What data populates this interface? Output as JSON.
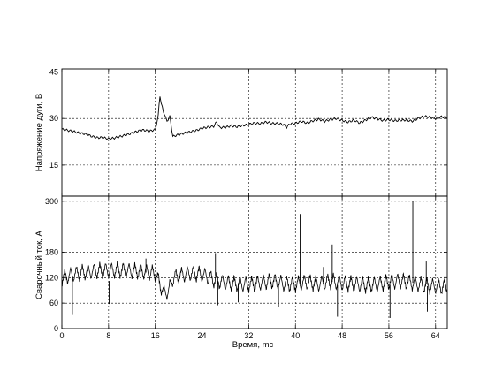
{
  "chart_data": [
    {
      "type": "line",
      "title": "",
      "xlabel": "",
      "ylabel": "Напряжение дуги, В",
      "xlim": [
        0,
        66
      ],
      "ylim": [
        5,
        46
      ],
      "yticks": [
        15,
        30,
        45
      ],
      "xticks": [],
      "grid": true,
      "line_color": "#000000",
      "series": [
        {
          "x": [
            0,
            1,
            2,
            3,
            4,
            5,
            6,
            7,
            8,
            9,
            10,
            11,
            12,
            13,
            14,
            15,
            16,
            16.5,
            16.8,
            17.2,
            17.6,
            18,
            18.5,
            19,
            19.5,
            20,
            21,
            22,
            23,
            24,
            25,
            26,
            26.5,
            27,
            28,
            29,
            30,
            31,
            32,
            33,
            34,
            35,
            36,
            37,
            38,
            38.5,
            39,
            40,
            41,
            42,
            43,
            44,
            45,
            46,
            47,
            48,
            49,
            50,
            51,
            52,
            53,
            54,
            55,
            56,
            57,
            58,
            59,
            60,
            61,
            62,
            63,
            64,
            65,
            66
          ],
          "values": [
            26.5,
            26,
            25.5,
            25,
            24.8,
            24.3,
            24,
            24.2,
            23.8,
            24,
            24.3,
            24.6,
            25,
            25.6,
            26,
            25.8,
            26.5,
            31,
            37,
            33.5,
            31,
            29.5,
            31,
            24.5,
            24.8,
            25,
            25.3,
            25.5,
            25.8,
            26.5,
            27,
            27.5,
            29,
            27.3,
            27.5,
            28,
            27.6,
            27.8,
            28,
            28.2,
            28,
            28.6,
            28.3,
            28.5,
            28.3,
            27.5,
            28.6,
            28.8,
            29.2,
            28.5,
            29,
            29.4,
            28.8,
            29.5,
            30,
            29.6,
            29.2,
            29.8,
            28.8,
            29.5,
            30.2,
            29.6,
            29,
            29.4,
            29.2,
            29.6,
            29.8,
            29.5,
            30.3,
            30.8,
            30.4,
            29.7,
            30.2,
            30
          ]
        }
      ]
    },
    {
      "type": "line",
      "title": "",
      "xlabel": "Время, mc",
      "ylabel": "Сварочный ток, А",
      "xlim": [
        0,
        66
      ],
      "ylim": [
        0,
        312
      ],
      "yticks": [
        0,
        60,
        120,
        180,
        300
      ],
      "xticks": [
        0,
        8,
        16,
        24,
        32,
        40,
        48,
        56,
        64
      ],
      "grid": true,
      "line_color": "#000000",
      "ripple_period": 1.0,
      "ripple_amplitude": 18,
      "envelope": {
        "x": [
          0,
          2,
          4,
          6,
          8,
          10,
          12,
          14,
          16,
          16.8,
          17.5,
          18.3,
          19,
          20,
          22,
          24,
          26,
          28,
          30,
          32,
          34,
          36,
          38,
          40,
          42,
          44,
          46,
          48,
          50,
          52,
          54,
          56,
          58,
          60,
          62,
          64,
          66
        ],
        "values": [
          118,
          128,
          133,
          136,
          137,
          137,
          136,
          134,
          130,
          105,
          82,
          90,
          118,
          125,
          130,
          128,
          115,
          108,
          105,
          104,
          108,
          112,
          106,
          104,
          110,
          105,
          112,
          107,
          105,
          103,
          104,
          110,
          112,
          108,
          102,
          100,
          98
        ]
      },
      "spikes": [
        {
          "x": 1.8,
          "values": [
            118,
            32
          ]
        },
        {
          "x": 8.1,
          "values": [
            112,
            58
          ]
        },
        {
          "x": 14.4,
          "values": [
            132,
            165
          ]
        },
        {
          "x": 26.3,
          "values": [
            125,
            178
          ]
        },
        {
          "x": 26.7,
          "values": [
            112,
            55
          ]
        },
        {
          "x": 30.2,
          "values": [
            104,
            62
          ]
        },
        {
          "x": 37.1,
          "values": [
            106,
            50
          ]
        },
        {
          "x": 40.8,
          "values": [
            105,
            270
          ]
        },
        {
          "x": 44.8,
          "values": [
            110,
            145
          ]
        },
        {
          "x": 46.3,
          "values": [
            110,
            198
          ]
        },
        {
          "x": 47.2,
          "values": [
            103,
            28
          ]
        },
        {
          "x": 51.4,
          "values": [
            104,
            58
          ]
        },
        {
          "x": 56.2,
          "values": [
            103,
            25
          ]
        },
        {
          "x": 60.1,
          "values": [
            108,
            300
          ]
        },
        {
          "x": 62.4,
          "values": [
            104,
            158
          ]
        },
        {
          "x": 62.6,
          "values": [
            100,
            40
          ]
        }
      ]
    }
  ]
}
